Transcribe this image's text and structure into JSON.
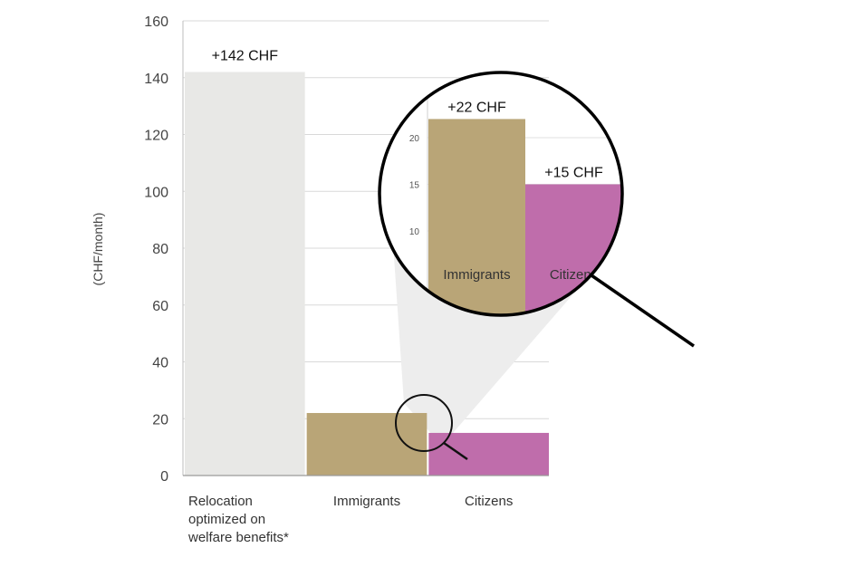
{
  "chart_data": {
    "type": "bar",
    "categories": [
      "Relocation optimized on welfare benefits*",
      "Immigrants",
      "Citizens"
    ],
    "category_lines": [
      [
        "Relocation",
        "optimized on",
        "welfare benefits*"
      ],
      [
        "Immigrants"
      ],
      [
        "Citizens"
      ]
    ],
    "values": [
      142,
      22,
      15
    ],
    "data_labels": [
      "+142 CHF",
      "+22 CHF",
      "+15 CHF"
    ],
    "colors": [
      "#e8e8e6",
      "#b9a577",
      "#bf6dab"
    ],
    "ylabel": "(CHF/month)",
    "ylim": [
      0,
      160
    ],
    "yticks": [
      0,
      20,
      40,
      60,
      80,
      100,
      120,
      140,
      160
    ],
    "grid": true,
    "inset": {
      "categories": [
        "Immigrants",
        "Citizens"
      ],
      "values": [
        22,
        15
      ],
      "data_labels": [
        "+22 CHF",
        "+15 CHF"
      ],
      "colors": [
        "#b9a577",
        "#bf6dab"
      ],
      "yticks": [
        10,
        15,
        20
      ]
    }
  }
}
